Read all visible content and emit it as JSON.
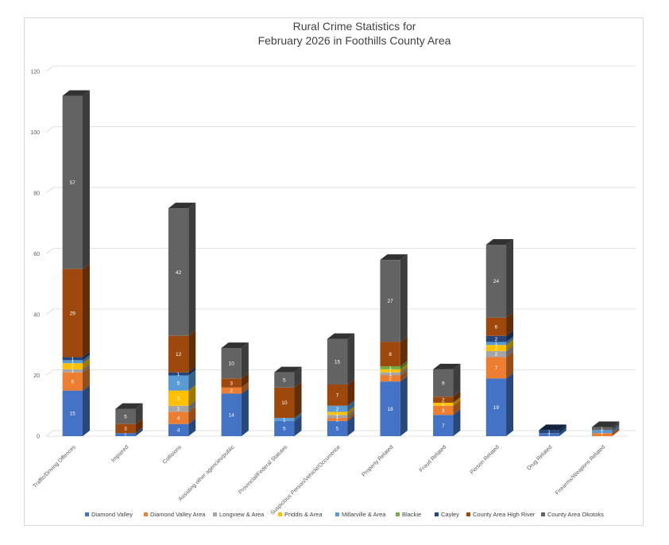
{
  "chart_data": {
    "type": "bar",
    "stacked": true,
    "style": "3d-column",
    "title_lines": [
      "Rural Crime Statistics for",
      "February 2026  in Foothills County Area"
    ],
    "xlabel": "",
    "ylabel": "",
    "ylim": [
      0,
      120
    ],
    "yticks": [
      0,
      20,
      40,
      60,
      80,
      100,
      120
    ],
    "grid": true,
    "legend_position": "bottom",
    "categories": [
      "Traffic/Driving Offences",
      "Impaired",
      "Collisions",
      "Assisting other agencies/public",
      "Provincial/Federal Statutes",
      "Suspicious Person/Vehicle/Occurrence",
      "Property Related",
      "Fraud Related",
      "Person Related",
      "Drug Related",
      "Firearms/Weapons Related"
    ],
    "series": [
      {
        "name": "Diamond Valley",
        "color": "#4472c4",
        "values": [
          15,
          1,
          4,
          14,
          5,
          5,
          18,
          7,
          19,
          1,
          0
        ]
      },
      {
        "name": "Diamond Valley Area",
        "color": "#ed7d31",
        "values": [
          6,
          0,
          4,
          2,
          0,
          1,
          2,
          3,
          7,
          0,
          1
        ]
      },
      {
        "name": "Longview & Area",
        "color": "#a5a5a5",
        "values": [
          1,
          0,
          2,
          0,
          0,
          1,
          1,
          0,
          2,
          0,
          0
        ]
      },
      {
        "name": "Priddis & Area",
        "color": "#ffc000",
        "values": [
          2,
          0,
          5,
          0,
          0,
          1,
          1,
          1,
          2,
          0,
          0
        ]
      },
      {
        "name": "Millarville & Area",
        "color": "#5b9bd5",
        "values": [
          1,
          0,
          5,
          0,
          1,
          2,
          0,
          0,
          1,
          0,
          1
        ]
      },
      {
        "name": "Blackie",
        "color": "#70ad47",
        "values": [
          0,
          0,
          0,
          0,
          0,
          0,
          1,
          0,
          0,
          0,
          0
        ]
      },
      {
        "name": "Cayley",
        "color": "#264478",
        "values": [
          1,
          0,
          1,
          0,
          0,
          0,
          0,
          0,
          2,
          1,
          0
        ]
      },
      {
        "name": "County Area High River",
        "color": "#9e480e",
        "values": [
          29,
          3,
          12,
          3,
          10,
          7,
          8,
          2,
          6,
          0,
          0
        ]
      },
      {
        "name": "County Area Okotoks",
        "color": "#636363",
        "values": [
          57,
          5,
          42,
          10,
          5,
          15,
          27,
          9,
          24,
          0,
          1
        ]
      }
    ]
  }
}
